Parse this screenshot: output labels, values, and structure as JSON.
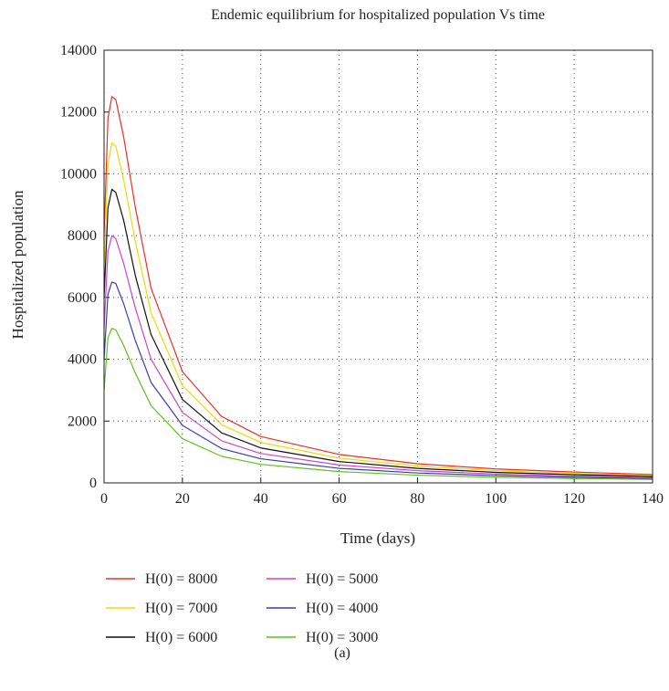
{
  "chart_data": {
    "type": "line",
    "title": "Endemic equilibrium for hospitalized population Vs time",
    "xlabel": "Time (days)",
    "ylabel": "Hospitalized population",
    "xlim": [
      0,
      140
    ],
    "ylim": [
      0,
      14000
    ],
    "x_ticks": [
      0,
      20,
      40,
      60,
      80,
      100,
      120,
      140
    ],
    "y_ticks": [
      0,
      2000,
      4000,
      6000,
      8000,
      10000,
      12000,
      14000
    ],
    "grid": true,
    "legend_placement": "bottom",
    "caption": "(a)",
    "series": [
      {
        "name": "H(0) = 8000",
        "color": "#e8302a",
        "x": [
          0,
          1,
          2,
          3,
          5,
          8,
          12,
          20,
          30,
          40,
          60,
          80,
          100,
          120,
          140
        ],
        "y": [
          8000,
          11800,
          12500,
          12400,
          11200,
          8900,
          6300,
          3600,
          2150,
          1500,
          920,
          620,
          450,
          350,
          270
        ]
      },
      {
        "name": "H(0) = 7000",
        "color": "#f5d800",
        "x": [
          0,
          1,
          2,
          3,
          5,
          8,
          12,
          20,
          30,
          40,
          60,
          80,
          100,
          120,
          140
        ],
        "y": [
          7000,
          10300,
          11000,
          10900,
          9800,
          7800,
          5500,
          3150,
          1880,
          1310,
          800,
          540,
          395,
          305,
          240
        ]
      },
      {
        "name": "H(0) = 6000",
        "color": "#111111",
        "x": [
          0,
          1,
          2,
          3,
          5,
          8,
          12,
          20,
          30,
          40,
          60,
          80,
          100,
          120,
          140
        ],
        "y": [
          6000,
          8900,
          9500,
          9400,
          8500,
          6700,
          4800,
          2700,
          1620,
          1130,
          690,
          470,
          340,
          265,
          210
        ]
      },
      {
        "name": "H(0) = 5000",
        "color": "#cc44cc",
        "x": [
          0,
          1,
          2,
          3,
          5,
          8,
          12,
          20,
          30,
          40,
          60,
          80,
          100,
          120,
          140
        ],
        "y": [
          5000,
          7500,
          8000,
          7900,
          7100,
          5650,
          4000,
          2280,
          1360,
          950,
          580,
          395,
          285,
          220,
          175
        ]
      },
      {
        "name": "H(0) = 4000",
        "color": "#3b3bb0",
        "x": [
          0,
          1,
          2,
          3,
          5,
          8,
          12,
          20,
          30,
          40,
          60,
          80,
          100,
          120,
          140
        ],
        "y": [
          4000,
          6100,
          6500,
          6450,
          5800,
          4600,
          3250,
          1860,
          1110,
          780,
          470,
          320,
          235,
          180,
          145
        ]
      },
      {
        "name": "H(0) = 3000",
        "color": "#5cc21e",
        "x": [
          0,
          1,
          2,
          3,
          5,
          8,
          12,
          20,
          30,
          40,
          60,
          80,
          100,
          120,
          140
        ],
        "y": [
          3000,
          4700,
          5000,
          4950,
          4450,
          3550,
          2500,
          1430,
          860,
          600,
          365,
          250,
          180,
          140,
          110
        ]
      }
    ]
  }
}
